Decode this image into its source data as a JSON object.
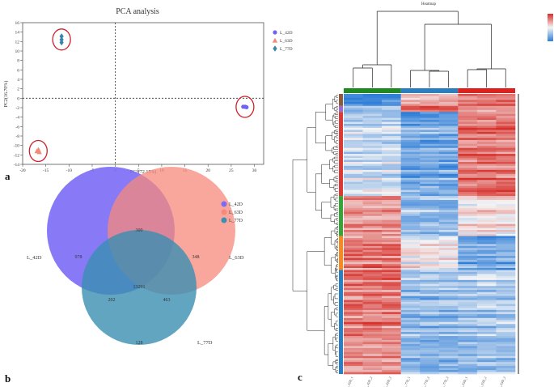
{
  "panel_labels": {
    "a": "a",
    "b": "b",
    "c": "c"
  },
  "chart_data": [
    {
      "type": "scatter",
      "title": "PCA analysis",
      "xlabel": "PC1(72.15%)",
      "ylabel": "PC2(16.70%)",
      "xlim": [
        -20,
        32
      ],
      "ylim": [
        -14,
        16
      ],
      "xticks": [
        -20,
        -15,
        -10,
        -5,
        0,
        5,
        10,
        15,
        20,
        25,
        30
      ],
      "yticks": [
        -14,
        -12,
        -10,
        -8,
        -6,
        -4,
        -2,
        0,
        2,
        4,
        6,
        8,
        10,
        12,
        14,
        16
      ],
      "xtick_labels": [
        "-20",
        "-15",
        "-10",
        "-5",
        "0",
        "5",
        "10",
        "15",
        "20",
        "25",
        "30"
      ],
      "ytick_labels": [
        "-14",
        "-12",
        "-10",
        "-8",
        "-6",
        "-4",
        "-2",
        "0",
        "2",
        "4",
        "6",
        "8",
        "10",
        "12",
        "14",
        "16"
      ],
      "grid": false,
      "legend_position": "top-right",
      "series": [
        {
          "name": "L_42D",
          "marker": "circle",
          "color": "#6f63f2",
          "points": [
            [
              27.6,
              -1.8
            ],
            [
              28.0,
              -1.8
            ],
            [
              28.3,
              -1.9
            ]
          ]
        },
        {
          "name": "L_63D",
          "marker": "triangle",
          "color": "#f28b77",
          "points": [
            [
              -16.9,
              -11.2
            ],
            [
              -16.6,
              -10.9
            ],
            [
              -16.4,
              -11.4
            ]
          ]
        },
        {
          "name": "L_77D",
          "marker": "diamond",
          "color": "#3b86a8",
          "points": [
            [
              -11.6,
              13.1
            ],
            [
              -11.6,
              11.8
            ],
            [
              -11.6,
              12.4
            ]
          ]
        }
      ],
      "highlight_circles": [
        "L_42D",
        "L_63D",
        "L_77D"
      ]
    },
    {
      "type": "venn",
      "sets": [
        {
          "name": "L_42D",
          "label": "L_42D",
          "color": "#7b6cf6"
        },
        {
          "name": "L_63D",
          "label": "L_63D",
          "color": "#f7897b"
        },
        {
          "name": "L_77D",
          "label": "L_77D",
          "color": "#3a8fb2"
        }
      ],
      "regions": {
        "L_42D_only": "978",
        "L_63D_only": "348",
        "L_77D_only": "128",
        "L_42D_L_63D": "300",
        "L_42D_L_77D": "202",
        "L_63D_L_77D": "463",
        "all_three": "13291"
      },
      "legend_position": "top-right"
    },
    {
      "type": "heatmap",
      "title": "Heatmap",
      "columns": [
        "L_42D_1",
        "L_42D_2",
        "L_42D_3",
        "L_77D_1",
        "L_77D_2",
        "L_77D_3",
        "L_63D_1",
        "L_63D_2",
        "L_63D_3"
      ],
      "column_groups": [
        {
          "name": "L_42D",
          "color": "#1f8a1f",
          "count": 3
        },
        {
          "name": "L_77D",
          "color": "#2a7fc0",
          "count": 3
        },
        {
          "name": "L_63D",
          "color": "#e0201d",
          "count": 3
        }
      ],
      "color_scale": {
        "low": "#2f7ed8",
        "mid": "#f5f5f5",
        "high": "#d7302b"
      },
      "row_clusters": [
        {
          "color": "#8c5a3c",
          "fraction": 0.04,
          "pattern": [
            -0.9,
            -0.9,
            -0.9,
            0.4,
            0.4,
            0.4,
            0.7,
            0.7,
            0.7
          ]
        },
        {
          "color": "#9b6bc9",
          "fraction": 0.02,
          "pattern": [
            -0.5,
            -0.5,
            -0.5,
            0.6,
            0.6,
            0.6,
            0.3,
            0.3,
            0.3
          ]
        },
        {
          "color": "#d93a36",
          "fraction": 0.3,
          "pattern": [
            -0.2,
            -0.2,
            -0.2,
            -0.6,
            -0.6,
            -0.6,
            0.7,
            0.7,
            0.7
          ]
        },
        {
          "color": "#3aa23a",
          "fraction": 0.14,
          "pattern": [
            0.5,
            0.5,
            0.5,
            -0.5,
            -0.5,
            -0.5,
            0.1,
            0.1,
            0.1
          ]
        },
        {
          "color": "#f28b24",
          "fraction": 0.12,
          "pattern": [
            0.6,
            0.6,
            0.6,
            0.0,
            0.0,
            0.0,
            -0.7,
            -0.7,
            -0.7
          ]
        },
        {
          "color": "#2a7fc0",
          "fraction": 0.38,
          "pattern": [
            0.6,
            0.6,
            0.6,
            -0.5,
            -0.5,
            -0.5,
            -0.4,
            -0.4,
            -0.4
          ]
        }
      ]
    }
  ]
}
